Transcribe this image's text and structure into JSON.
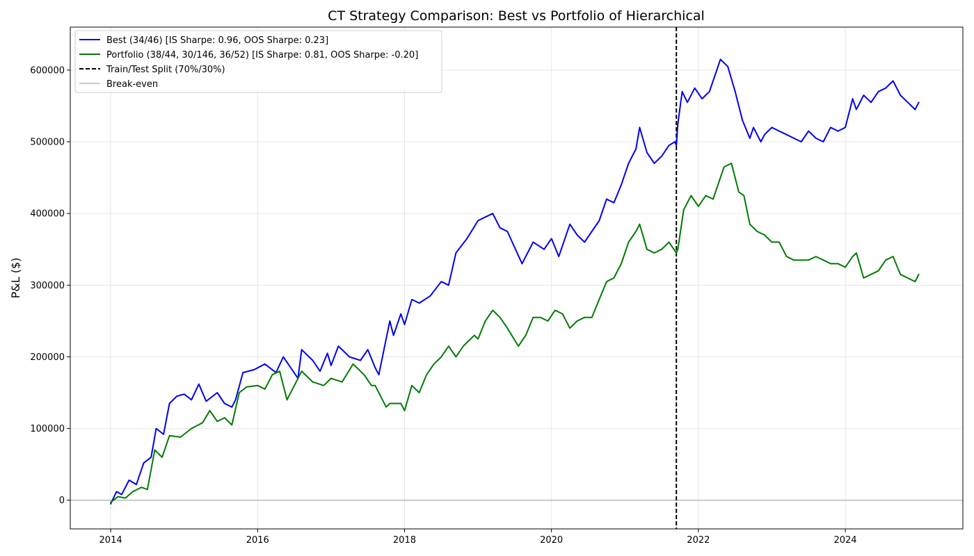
{
  "chart_data": {
    "type": "line",
    "title": "CT Strategy Comparison: Best vs Portfolio of Hierarchical",
    "xlabel": "",
    "ylabel": "P&L ($)",
    "x_ticks": [
      "2014",
      "2016",
      "2018",
      "2020",
      "2022",
      "2024"
    ],
    "y_ticks": [
      "0",
      "100000",
      "200000",
      "300000",
      "400000",
      "500000",
      "600000"
    ],
    "xlim": [
      2013.45,
      2025.6
    ],
    "ylim": [
      -40000,
      660000
    ],
    "grid": true,
    "legend_position": "top-left",
    "colors": {
      "best": "#0000ee",
      "portfolio": "#007a00",
      "split": "#000000",
      "breakeven": "#b8b8b8",
      "grid": "#e6e6e6"
    },
    "split_x": 2021.7,
    "breakeven_y": 0,
    "legend": [
      "Best (34/46) [IS Sharpe: 0.96, OOS Sharpe: 0.23]",
      "Portfolio (38/44, 30/146, 36/52) [IS Sharpe: 0.81, OOS Sharpe: -0.20]",
      "Train/Test Split (70%/30%)",
      "Break-even"
    ],
    "series": [
      {
        "name": "Best (34/46) [IS Sharpe: 0.96, OOS Sharpe: 0.23]",
        "x": [
          2014.0,
          2014.08,
          2014.15,
          2014.25,
          2014.35,
          2014.45,
          2014.55,
          2014.62,
          2014.72,
          2014.8,
          2014.9,
          2015.0,
          2015.1,
          2015.2,
          2015.3,
          2015.45,
          2015.55,
          2015.65,
          2015.7,
          2015.8,
          2015.95,
          2016.1,
          2016.25,
          2016.35,
          2016.45,
          2016.55,
          2016.6,
          2016.75,
          2016.85,
          2016.95,
          2017.0,
          2017.1,
          2017.25,
          2017.4,
          2017.5,
          2017.6,
          2017.65,
          2017.8,
          2017.85,
          2017.95,
          2018.0,
          2018.1,
          2018.2,
          2018.35,
          2018.5,
          2018.6,
          2018.7,
          2018.85,
          2019.0,
          2019.1,
          2019.2,
          2019.3,
          2019.4,
          2019.6,
          2019.75,
          2019.9,
          2020.0,
          2020.1,
          2020.15,
          2020.25,
          2020.35,
          2020.45,
          2020.55,
          2020.65,
          2020.75,
          2020.85,
          2020.95,
          2021.05,
          2021.15,
          2021.2,
          2021.3,
          2021.4,
          2021.5,
          2021.6,
          2021.68,
          2021.7,
          2021.72,
          2021.78,
          2021.85,
          2021.95,
          2022.05,
          2022.15,
          2022.25,
          2022.3,
          2022.4,
          2022.5,
          2022.6,
          2022.7,
          2022.75,
          2022.85,
          2022.9,
          2023.0,
          2023.1,
          2023.2,
          2023.3,
          2023.4,
          2023.5,
          2023.6,
          2023.7,
          2023.8,
          2023.9,
          2024.0,
          2024.1,
          2024.15,
          2024.25,
          2024.35,
          2024.45,
          2024.55,
          2024.6,
          2024.65,
          2024.75,
          2024.85,
          2024.95,
          2025.0
        ],
        "y": [
          -5000,
          12000,
          8000,
          28000,
          22000,
          52000,
          60000,
          100000,
          92000,
          135000,
          145000,
          148000,
          140000,
          162000,
          138000,
          150000,
          135000,
          130000,
          140000,
          178000,
          182000,
          190000,
          178000,
          200000,
          185000,
          170000,
          210000,
          195000,
          180000,
          205000,
          188000,
          215000,
          200000,
          195000,
          210000,
          185000,
          175000,
          250000,
          230000,
          260000,
          245000,
          280000,
          275000,
          285000,
          305000,
          300000,
          345000,
          365000,
          390000,
          395000,
          400000,
          380000,
          375000,
          330000,
          360000,
          350000,
          365000,
          340000,
          355000,
          385000,
          370000,
          360000,
          375000,
          390000,
          420000,
          415000,
          440000,
          470000,
          490000,
          520000,
          485000,
          470000,
          480000,
          495000,
          500000,
          495000,
          525000,
          570000,
          555000,
          575000,
          560000,
          570000,
          600000,
          615000,
          605000,
          570000,
          530000,
          505000,
          520000,
          500000,
          510000,
          520000,
          515000,
          510000,
          505000,
          500000,
          515000,
          505000,
          500000,
          520000,
          515000,
          520000,
          560000,
          545000,
          565000,
          555000,
          570000,
          575000,
          580000,
          585000,
          565000,
          555000,
          545000,
          555000
        ]
      },
      {
        "name": "Portfolio (38/44, 30/146, 36/52) [IS Sharpe: 0.81, OOS Sharpe: -0.20]",
        "x": [
          2014.0,
          2014.1,
          2014.2,
          2014.3,
          2014.42,
          2014.5,
          2014.6,
          2014.7,
          2014.8,
          2014.95,
          2015.1,
          2015.25,
          2015.35,
          2015.45,
          2015.55,
          2015.65,
          2015.75,
          2015.85,
          2016.0,
          2016.1,
          2016.2,
          2016.3,
          2016.4,
          2016.5,
          2016.6,
          2016.75,
          2016.9,
          2017.0,
          2017.15,
          2017.3,
          2017.45,
          2017.55,
          2017.6,
          2017.75,
          2017.8,
          2017.95,
          2018.0,
          2018.1,
          2018.2,
          2018.3,
          2018.4,
          2018.5,
          2018.6,
          2018.7,
          2018.8,
          2018.95,
          2019.0,
          2019.1,
          2019.2,
          2019.3,
          2019.4,
          2019.55,
          2019.65,
          2019.75,
          2019.85,
          2019.95,
          2020.05,
          2020.15,
          2020.25,
          2020.35,
          2020.45,
          2020.55,
          2020.65,
          2020.75,
          2020.85,
          2020.95,
          2021.05,
          2021.15,
          2021.2,
          2021.3,
          2021.4,
          2021.5,
          2021.6,
          2021.7,
          2021.72,
          2021.8,
          2021.9,
          2022.0,
          2022.1,
          2022.2,
          2022.3,
          2022.35,
          2022.45,
          2022.55,
          2022.62,
          2022.7,
          2022.8,
          2022.9,
          2023.0,
          2023.1,
          2023.2,
          2023.3,
          2023.4,
          2023.5,
          2023.6,
          2023.7,
          2023.8,
          2023.9,
          2024.0,
          2024.1,
          2024.15,
          2024.25,
          2024.35,
          2024.45,
          2024.55,
          2024.65,
          2024.75,
          2024.85,
          2024.95,
          2025.0
        ],
        "y": [
          -3000,
          5000,
          3000,
          12000,
          18000,
          15000,
          70000,
          60000,
          90000,
          88000,
          100000,
          108000,
          125000,
          110000,
          115000,
          105000,
          150000,
          158000,
          160000,
          155000,
          175000,
          180000,
          140000,
          160000,
          180000,
          165000,
          160000,
          170000,
          165000,
          190000,
          175000,
          160000,
          160000,
          130000,
          135000,
          135000,
          125000,
          160000,
          150000,
          175000,
          190000,
          200000,
          215000,
          200000,
          215000,
          230000,
          225000,
          250000,
          265000,
          255000,
          240000,
          215000,
          230000,
          255000,
          255000,
          250000,
          265000,
          260000,
          240000,
          250000,
          255000,
          255000,
          280000,
          305000,
          310000,
          330000,
          360000,
          375000,
          385000,
          350000,
          345000,
          350000,
          360000,
          345000,
          350000,
          405000,
          425000,
          410000,
          425000,
          420000,
          450000,
          465000,
          470000,
          430000,
          425000,
          385000,
          375000,
          370000,
          360000,
          360000,
          340000,
          335000,
          335000,
          335000,
          340000,
          335000,
          330000,
          330000,
          325000,
          340000,
          345000,
          310000,
          315000,
          320000,
          335000,
          340000,
          315000,
          310000,
          305000,
          315000
        ]
      }
    ]
  }
}
